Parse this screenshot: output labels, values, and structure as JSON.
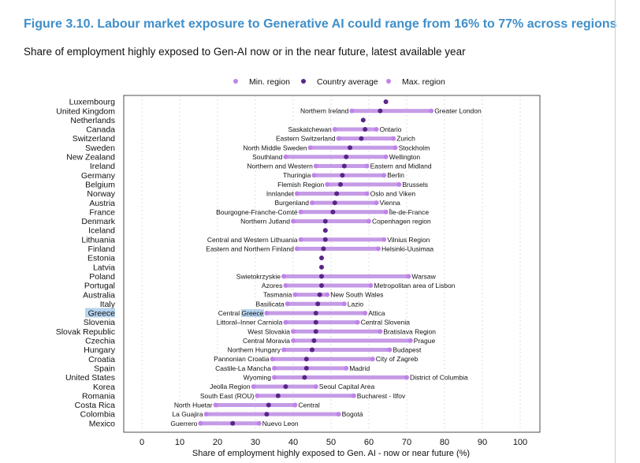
{
  "title": "Figure 3.10. Labour market exposure to Generative AI could range from 16% to 77% across regions",
  "subtitle": "Share of employment highly exposed to Gen-AI now or in the near future, latest available year",
  "colors": {
    "range": "#c59be6",
    "minmax": "#c084e8",
    "country": "#5a2587",
    "highlight": "#b7d4ee"
  },
  "chart_data": {
    "type": "dot-range",
    "xlabel": "Share of employment highly exposed to Gen. AI - now or near future (%)",
    "xlim": [
      0,
      100
    ],
    "xticks": [
      0,
      10,
      20,
      30,
      40,
      50,
      60,
      70,
      80,
      90,
      100
    ],
    "legend": {
      "placement": "top-center",
      "entries": [
        "Min. region",
        "Country average",
        "Max. region"
      ]
    },
    "highlight_text": "Greece",
    "rows": [
      {
        "country": "Luxembourg",
        "avg": 64.5
      },
      {
        "country": "United Kingdom",
        "min": 55.5,
        "avg": 63,
        "max": 76.5,
        "min_label": "Northern Ireland",
        "max_label": "Greater London"
      },
      {
        "country": "Netherlands",
        "avg": 58.5
      },
      {
        "country": "Canada",
        "min": 51,
        "avg": 59,
        "max": 62,
        "min_label": "Saskatchewan",
        "max_label": "Ontario"
      },
      {
        "country": "Switzerland",
        "min": 52,
        "avg": 58,
        "max": 66.5,
        "min_label": "Eastern Switzerland",
        "max_label": "Zurich"
      },
      {
        "country": "Sweden",
        "min": 44.5,
        "avg": 55,
        "max": 67,
        "min_label": "North Middle Sweden",
        "max_label": "Stockholm"
      },
      {
        "country": "New Zealand",
        "min": 38,
        "avg": 54,
        "max": 64.5,
        "min_label": "Southland",
        "max_label": "Wellington"
      },
      {
        "country": "Ireland",
        "min": 46,
        "avg": 53.5,
        "max": 59.5,
        "min_label": "Northern and Western",
        "max_label": "Eastern and Midland"
      },
      {
        "country": "Germany",
        "min": 45.5,
        "avg": 53,
        "max": 64,
        "min_label": "Thuringia",
        "max_label": "Berlin"
      },
      {
        "country": "Belgium",
        "min": 49,
        "avg": 52.5,
        "max": 68,
        "min_label": "Flemish Region",
        "max_label": "Brussels"
      },
      {
        "country": "Norway",
        "min": 41,
        "avg": 51.5,
        "max": 59.5,
        "min_label": "Innlandet",
        "max_label": "Oslo and Viken"
      },
      {
        "country": "Austria",
        "min": 45,
        "avg": 51,
        "max": 62,
        "min_label": "Burgenland",
        "max_label": "Vienna"
      },
      {
        "country": "France",
        "min": 42,
        "avg": 50.5,
        "max": 64.5,
        "min_label": "Bourgogne-Franche-Comté",
        "max_label": "Île-de-France"
      },
      {
        "country": "Denmark",
        "min": 40,
        "avg": 48.5,
        "max": 60,
        "min_label": "Northern Jutland",
        "max_label": "Copenhagen region"
      },
      {
        "country": "Iceland",
        "avg": 48.5
      },
      {
        "country": "Lithuania",
        "min": 42,
        "avg": 48.5,
        "max": 64,
        "min_label": "Central and Western Lithuania",
        "max_label": "Vilnius Region"
      },
      {
        "country": "Finland",
        "min": 41,
        "avg": 48,
        "max": 62.5,
        "min_label": "Eastern and Northern Finland",
        "max_label": "Helsinki-Uusimaa"
      },
      {
        "country": "Estonia",
        "avg": 47.5
      },
      {
        "country": "Latvia",
        "avg": 47.5
      },
      {
        "country": "Poland",
        "min": 37.5,
        "avg": 47.5,
        "max": 70.5,
        "min_label": "Swietokrzyskie",
        "max_label": "Warsaw"
      },
      {
        "country": "Portugal",
        "min": 38,
        "avg": 47.5,
        "max": 60.5,
        "min_label": "Azores",
        "max_label": "Metropolitan area of Lisbon"
      },
      {
        "country": "Australia",
        "min": 40.5,
        "avg": 47,
        "max": 49,
        "min_label": "Tasmania",
        "max_label": "New South Wales"
      },
      {
        "country": "Italy",
        "min": 38.5,
        "avg": 46.5,
        "max": 53.5,
        "min_label": "Basilicata",
        "max_label": "Lazio"
      },
      {
        "country": "Greece",
        "min": 33,
        "avg": 46,
        "max": 59,
        "min_label": "Central Greece",
        "max_label": "Attica"
      },
      {
        "country": "Slovenia",
        "min": 38,
        "avg": 46,
        "max": 57,
        "min_label": "Littoral–Inner Carniola",
        "max_label": "Central Slovenia"
      },
      {
        "country": "Slovak Republic",
        "min": 40,
        "avg": 46,
        "max": 63,
        "min_label": "West Slovakia",
        "max_label": "Bratislava Region"
      },
      {
        "country": "Czechia",
        "min": 40,
        "avg": 45.5,
        "max": 71,
        "min_label": "Central Moravia",
        "max_label": "Prague"
      },
      {
        "country": "Hungary",
        "min": 37.5,
        "avg": 45,
        "max": 65.5,
        "min_label": "Northern Hungary",
        "max_label": "Budapest"
      },
      {
        "country": "Croatia",
        "min": 34.5,
        "avg": 43.5,
        "max": 61,
        "min_label": "Pannonian Croatia",
        "max_label": "City of Zagreb"
      },
      {
        "country": "Spain",
        "min": 35,
        "avg": 43.5,
        "max": 54,
        "min_label": "Castile-La Mancha",
        "max_label": "Madrid"
      },
      {
        "country": "United States",
        "min": 35,
        "avg": 43,
        "max": 70,
        "min_label": "Wyoming",
        "max_label": "District of Columbia"
      },
      {
        "country": "Korea",
        "min": 29.5,
        "avg": 38,
        "max": 46,
        "min_label": "Jeolla Region",
        "max_label": "Seoul Capital Area"
      },
      {
        "country": "Romania",
        "min": 30.5,
        "avg": 36,
        "max": 56,
        "min_label": "South East (ROU)",
        "max_label": "Bucharest - Ilfov"
      },
      {
        "country": "Costa Rica",
        "min": 19.5,
        "avg": 33.5,
        "max": 40.5,
        "min_label": "North Huetar",
        "max_label": "Central"
      },
      {
        "country": "Colombia",
        "min": 17,
        "avg": 33,
        "max": 52,
        "min_label": "La Guajira",
        "max_label": "Bogotá"
      },
      {
        "country": "Mexico",
        "min": 15.5,
        "avg": 24,
        "max": 31,
        "min_label": "Guerrero",
        "max_label": "Nuevo Leon"
      }
    ]
  }
}
